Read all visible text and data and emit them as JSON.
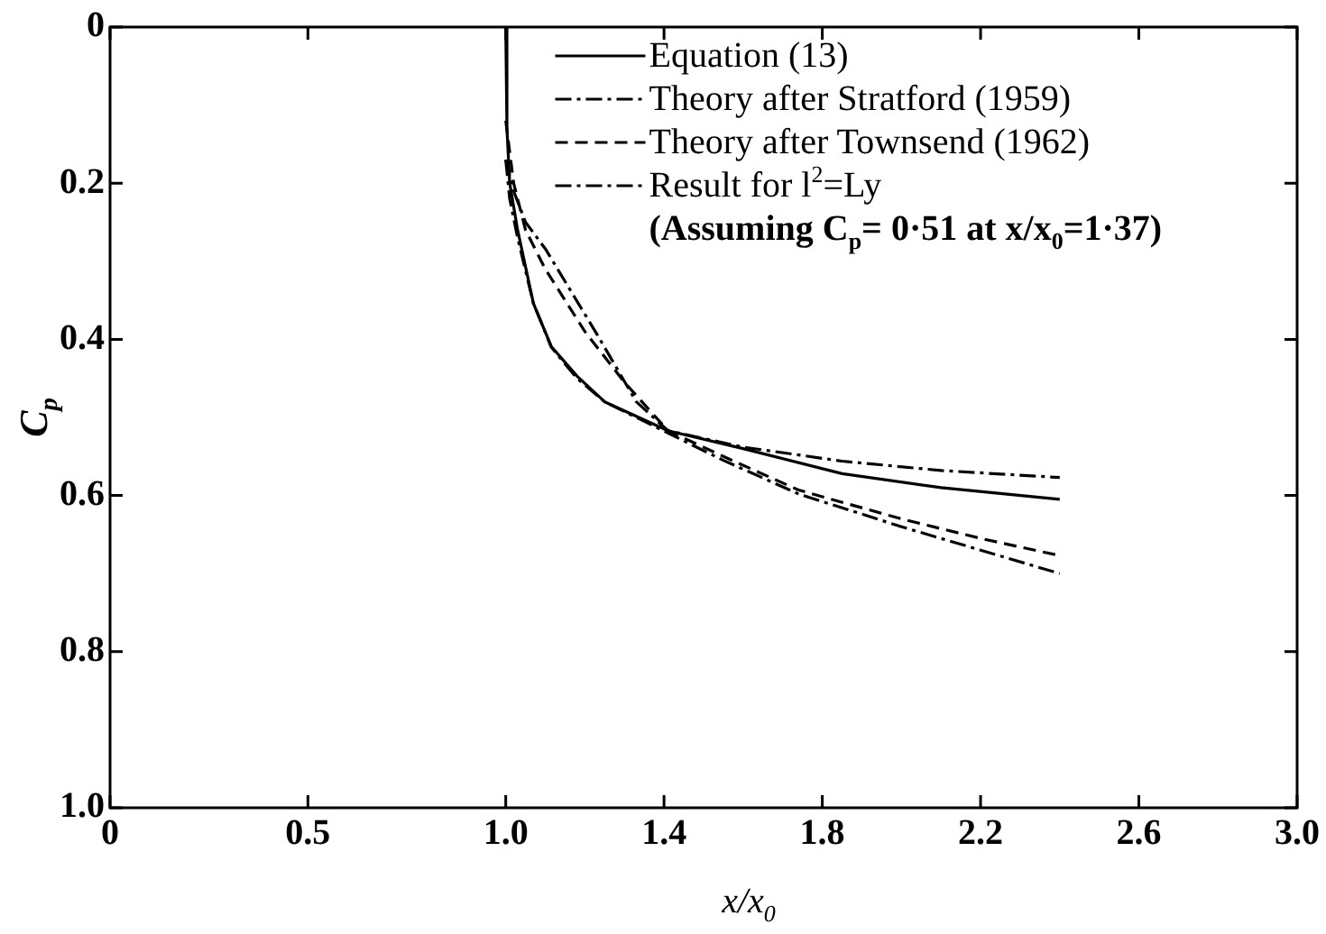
{
  "chart_data": {
    "type": "line",
    "xlabel": "x/x$_{0}$",
    "ylabel": "C$_{p}$",
    "xlim": [
      0,
      3
    ],
    "ylim": [
      1,
      0
    ],
    "xticks": [
      0,
      0.5,
      {
        "value": 1,
        "label": "1.0"
      },
      1.4,
      1.8,
      2.2,
      2.6,
      {
        "value": 3,
        "label": "3.0"
      }
    ],
    "yticks": [
      0,
      0.2,
      0.4,
      0.6,
      0.8,
      {
        "value": 1,
        "label": "1.0"
      }
    ],
    "legend": "top right",
    "marker": "none",
    "series": [
      {
        "name": "Equation (13)",
        "color": "#000000",
        "line_style": "solid",
        "x": [
          1.0,
          1.003,
          1.01,
          1.03,
          1.07,
          1.115,
          1.18,
          1.25,
          1.41,
          1.6,
          1.85,
          2.1,
          2.4
        ],
        "values": [
          0,
          0.13,
          0.2,
          0.26,
          0.354,
          0.409,
          0.447,
          0.48,
          0.517,
          0.54,
          0.572,
          0.59,
          0.605
        ]
      },
      {
        "name": "Theory after Stratford (1959)",
        "color": "#000000",
        "line_style": "dashdot",
        "x": [
          1.0,
          1.01,
          1.03,
          1.07,
          1.115,
          1.18,
          1.25,
          1.41,
          1.55,
          1.74,
          2.0,
          2.2,
          2.4
        ],
        "values": [
          0.17,
          0.22,
          0.27,
          0.354,
          0.41,
          0.45,
          0.48,
          0.52,
          0.555,
          0.598,
          0.64,
          0.67,
          0.7
        ]
      },
      {
        "name": "Theory after Townsend (1962)",
        "color": "#000000",
        "line_style": "dashed",
        "x": [
          1.0,
          1.02,
          1.05,
          1.1,
          1.2,
          1.3,
          1.41,
          1.55,
          1.74,
          2.0,
          2.2,
          2.4
        ],
        "values": [
          0.12,
          0.2,
          0.26,
          0.31,
          0.39,
          0.455,
          0.517,
          0.55,
          0.593,
          0.63,
          0.655,
          0.677
        ]
      },
      {
        "name": "Result for l$^{2}$=Ly",
        "color": "#000000",
        "line_style": "dashdot",
        "x": [
          1.0,
          1.02,
          1.05,
          1.1,
          1.23,
          1.33,
          1.41,
          1.6,
          1.85,
          2.1,
          2.4
        ],
        "values": [
          0.17,
          0.21,
          0.25,
          0.284,
          0.393,
          0.48,
          0.517,
          0.538,
          0.556,
          0.568,
          0.577
        ]
      }
    ],
    "annotations": [
      "(Assuming C$_{p}$= 0·51 at x/x$_{0}$=1·37)"
    ]
  }
}
